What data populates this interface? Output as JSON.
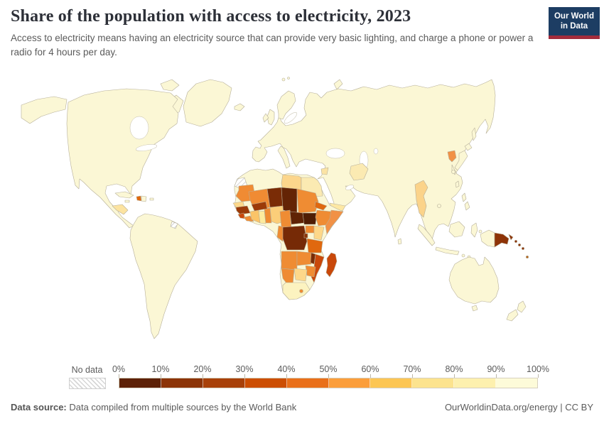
{
  "header": {
    "title": "Share of the population with access to electricity, 2023",
    "subtitle": "Access to electricity means having an electricity source that can provide very basic lighting, and charge a phone or power a radio for 4 hours per day.",
    "logo": {
      "line1": "Our World",
      "line2": "in Data",
      "bg": "#1d3d63",
      "accent": "#a32c3c"
    }
  },
  "legend": {
    "no_data_label": "No data",
    "ticks": [
      "0%",
      "10%",
      "20%",
      "30%",
      "40%",
      "50%",
      "60%",
      "70%",
      "80%",
      "90%",
      "100%"
    ],
    "bins": [
      {
        "range": "0-10%",
        "color": "#5d2107"
      },
      {
        "range": "10-20%",
        "color": "#8c3407"
      },
      {
        "range": "20-30%",
        "color": "#a84109"
      },
      {
        "range": "30-40%",
        "color": "#cc4e02"
      },
      {
        "range": "40-50%",
        "color": "#e9701a"
      },
      {
        "range": "50-60%",
        "color": "#fb9e3b"
      },
      {
        "range": "60-70%",
        "color": "#fcc654"
      },
      {
        "range": "70-80%",
        "color": "#fce38e"
      },
      {
        "range": "80-90%",
        "color": "#fdf0ae"
      },
      {
        "range": "90-100%",
        "color": "#fdfbd9"
      }
    ]
  },
  "footer": {
    "source_label": "Data source:",
    "source_text": " Data compiled from multiple sources by the World Bank",
    "link_text": "OurWorldinData.org/energy | CC BY"
  },
  "map_colors": {
    "ocean": "#ffffff",
    "default_land": "#fbf7d5",
    "border": "#b6af99",
    "regions": {
      "western-sahara": "no-data",
      "french-guiana": "no-data",
      "libya": "#fcd68c",
      "egypt": "#fbeab2",
      "mauritania": "#f08b33",
      "mali": "#f08b33",
      "niger": "#7a2c06",
      "chad": "#642405",
      "sudan": "#ef8c33",
      "eritrea": "#e0680f",
      "senegal": "#fdd88a",
      "guinea": "#9c3a08",
      "sierra-leone": "#c9480a",
      "liberia": "#ef8c33",
      "cote-divoire": "#fbc468",
      "ghana": "#fdeb9e",
      "togo-benin": "#ef8c33",
      "burkina-faso": "#9c3a08",
      "nigeria": "#fbce79",
      "cameroon": "#ef8c33",
      "central-african-republic": "#5f2305",
      "south-sudan": "#4f1d04",
      "ethiopia": "#ef8c33",
      "somalia": "#f19146",
      "uganda": "#ef8c33",
      "kenya": "#fdd88a",
      "drc": "#762a06",
      "congo": "#ef8c33",
      "rwanda-burundi": "#8c3407",
      "tanzania": "#e0680f",
      "angola": "#ef8c33",
      "zambia": "#ef8c33",
      "malawi": "#7a2c06",
      "mozambique": "#c9480a",
      "zimbabwe": "#ef8c33",
      "botswana": "#fdd88a",
      "namibia": "#ef8c33",
      "south-africa": "#fcf3c0",
      "lesotho": "#ef8c33",
      "madagascar": "#c9480a",
      "haiti": "#e0680f",
      "central-america": "#fce3a0",
      "myanmar": "#fbd38a",
      "afghanistan": "#fbeab2",
      "syria": "#fbe3a4",
      "yemen": "#fde8a4",
      "north-korea": "#f19146",
      "papua-new-guinea": "#8e3307",
      "new-britain": "#8e3307",
      "solomon-islands": "#8e3307",
      "vanuatu": "#b5651d"
    }
  },
  "chart_data": {
    "type": "choropleth_map",
    "title": "Share of the population with access to electricity, 2023",
    "year": 2023,
    "unit": "% of population with access to electricity",
    "source": "Data compiled from multiple sources by the World Bank",
    "legend_position": "bottom",
    "legend_bins": [
      {
        "range": "0-10%",
        "color": "#5d2107"
      },
      {
        "range": "10-20%",
        "color": "#8c3407"
      },
      {
        "range": "20-30%",
        "color": "#a84109"
      },
      {
        "range": "30-40%",
        "color": "#cc4e02"
      },
      {
        "range": "40-50%",
        "color": "#e9701a"
      },
      {
        "range": "50-60%",
        "color": "#fb9e3b"
      },
      {
        "range": "60-70%",
        "color": "#fcc654"
      },
      {
        "range": "70-80%",
        "color": "#fce38e"
      },
      {
        "range": "80-90%",
        "color": "#fdf0ae"
      },
      {
        "range": "90-100%",
        "color": "#fdfbd9"
      }
    ],
    "no_data_regions": [
      "Western Sahara",
      "French Guiana"
    ],
    "default_region_value": "90-100%",
    "regions": [
      {
        "name": "Chad",
        "value_bin": "0-10%"
      },
      {
        "name": "South Sudan",
        "value_bin": "0-10%"
      },
      {
        "name": "Central African Republic",
        "value_bin": "0-10%"
      },
      {
        "name": "Niger",
        "value_bin": "10-20%"
      },
      {
        "name": "Democratic Republic of Congo",
        "value_bin": "10-20%"
      },
      {
        "name": "Malawi",
        "value_bin": "10-20%"
      },
      {
        "name": "Rwanda-Burundi",
        "value_bin": "10-20%"
      },
      {
        "name": "Papua New Guinea",
        "value_bin": "10-20%"
      },
      {
        "name": "Solomon Islands",
        "value_bin": "10-20%"
      },
      {
        "name": "Burkina Faso",
        "value_bin": "20-30%"
      },
      {
        "name": "Guinea",
        "value_bin": "20-30%"
      },
      {
        "name": "Sierra Leone",
        "value_bin": "30-40%"
      },
      {
        "name": "Madagascar",
        "value_bin": "30-40%"
      },
      {
        "name": "Mozambique",
        "value_bin": "30-40%"
      },
      {
        "name": "Vanuatu",
        "value_bin": "30-40%"
      },
      {
        "name": "Tanzania",
        "value_bin": "40-50%"
      },
      {
        "name": "Eritrea",
        "value_bin": "40-50%"
      },
      {
        "name": "Haiti",
        "value_bin": "40-50%"
      },
      {
        "name": "Mauritania",
        "value_bin": "50-60%"
      },
      {
        "name": "Mali",
        "value_bin": "50-60%"
      },
      {
        "name": "Sudan",
        "value_bin": "50-60%"
      },
      {
        "name": "Ethiopia",
        "value_bin": "50-60%"
      },
      {
        "name": "Somalia",
        "value_bin": "50-60%"
      },
      {
        "name": "Uganda",
        "value_bin": "50-60%"
      },
      {
        "name": "Angola",
        "value_bin": "50-60%"
      },
      {
        "name": "Zambia",
        "value_bin": "50-60%"
      },
      {
        "name": "Zimbabwe",
        "value_bin": "50-60%"
      },
      {
        "name": "Namibia",
        "value_bin": "50-60%"
      },
      {
        "name": "Cameroon",
        "value_bin": "50-60%"
      },
      {
        "name": "Republic of Congo",
        "value_bin": "50-60%"
      },
      {
        "name": "Liberia",
        "value_bin": "50-60%"
      },
      {
        "name": "Togo-Benin",
        "value_bin": "50-60%"
      },
      {
        "name": "North Korea",
        "value_bin": "50-60%"
      },
      {
        "name": "Lesotho",
        "value_bin": "50-60%"
      },
      {
        "name": "Nigeria",
        "value_bin": "60-70%"
      },
      {
        "name": "Cote d'Ivoire",
        "value_bin": "60-70%"
      },
      {
        "name": "Senegal",
        "value_bin": "70-80%"
      },
      {
        "name": "Kenya",
        "value_bin": "70-80%"
      },
      {
        "name": "Botswana",
        "value_bin": "70-80%"
      },
      {
        "name": "Libya",
        "value_bin": "70-80%"
      },
      {
        "name": "Myanmar",
        "value_bin": "70-80%"
      },
      {
        "name": "Yemen",
        "value_bin": "70-80%"
      },
      {
        "name": "Syria",
        "value_bin": "70-80%"
      },
      {
        "name": "Honduras-Nicaragua",
        "value_bin": "70-80%"
      },
      {
        "name": "Ghana",
        "value_bin": "80-90%"
      },
      {
        "name": "Egypt",
        "value_bin": "80-90%"
      },
      {
        "name": "Afghanistan",
        "value_bin": "80-90%"
      },
      {
        "name": "South Africa",
        "value_bin": "80-90%"
      },
      {
        "name": "Rest of world (Americas, Europe, Asia, Oceania)",
        "value_bin": "90-100%"
      }
    ]
  }
}
